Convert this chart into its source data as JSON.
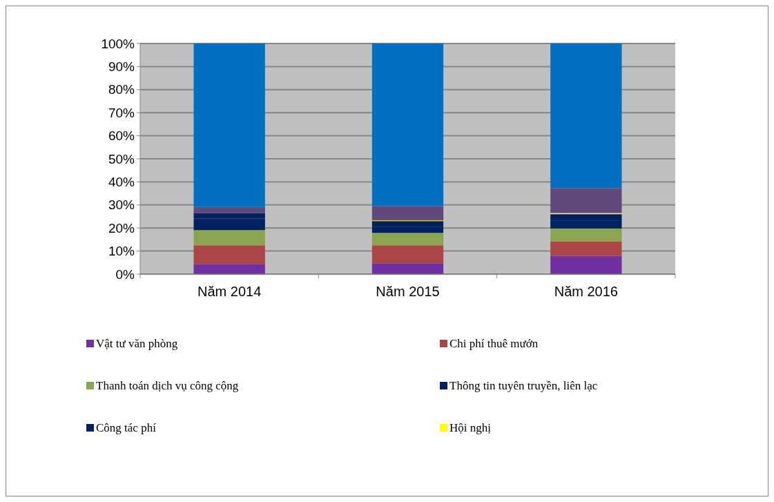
{
  "chart_data": {
    "type": "bar",
    "stacked": true,
    "categories": [
      "Năm 2014",
      "Năm 2015",
      "Năm 2016"
    ],
    "series": [
      {
        "name": "Vật tư văn phòng",
        "color": "#7030a0",
        "values": [
          4.4,
          4.7,
          7.9
        ]
      },
      {
        "name": "Chi phí thuê mướn",
        "color": "#aa4643",
        "values": [
          8.1,
          7.8,
          6.2
        ]
      },
      {
        "name": "Thanh toán dịch vụ công cộng",
        "color": "#89a54e",
        "values": [
          6.6,
          5.4,
          5.7
        ]
      },
      {
        "name": "Thông tin tuyên truyền, liên lạc",
        "color": "#002060",
        "values": [
          5.0,
          2.7,
          3.3
        ]
      },
      {
        "name": "Công tác phí",
        "color": "#002060",
        "values": [
          2.4,
          2.4,
          2.9
        ]
      },
      {
        "name": "Hội nghị",
        "color": "#ffff00",
        "values": [
          0,
          0.3,
          0.5
        ]
      },
      {
        "color": "#604a7b",
        "values": [
          2.6,
          6.2,
          10.8
        ]
      },
      {
        "color": "#0070c0",
        "values": [
          70.9,
          70.5,
          62.7
        ]
      }
    ],
    "ylim": [
      0,
      100
    ],
    "yticks": [
      {
        "value": 0,
        "label": "0%"
      },
      {
        "value": 10,
        "label": "10%"
      },
      {
        "value": 20,
        "label": "20%"
      },
      {
        "value": 30,
        "label": "30%"
      },
      {
        "value": 40,
        "label": "40%"
      },
      {
        "value": 50,
        "label": "50%"
      },
      {
        "value": 60,
        "label": "60%"
      },
      {
        "value": 70,
        "label": "70%"
      },
      {
        "value": 80,
        "label": "80%"
      },
      {
        "value": 90,
        "label": "90%"
      },
      {
        "value": 100,
        "label": "100%"
      }
    ],
    "grid": "y",
    "legend": "bottom"
  }
}
